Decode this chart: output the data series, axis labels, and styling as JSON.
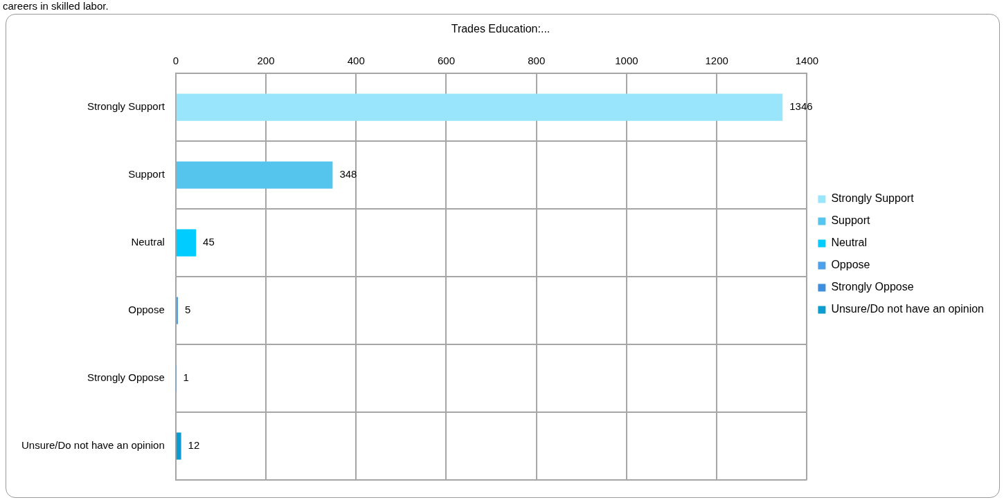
{
  "chart_data": {
    "type": "bar",
    "orientation": "horizontal",
    "stacked": true,
    "title": "Trades Education:...",
    "annotations": [
      "careers in skilled labor."
    ],
    "categories": [
      "Strongly Support",
      "Support",
      "Neutral",
      "Oppose",
      "Strongly Oppose",
      "Unsure/Do not have an opinion"
    ],
    "series": [
      {
        "name": "Strongly Support",
        "color": "#99e5fb",
        "values": [
          1346,
          null,
          null,
          null,
          null,
          null
        ]
      },
      {
        "name": "Support",
        "color": "#56c5ee",
        "values": [
          null,
          348,
          null,
          null,
          null,
          null
        ]
      },
      {
        "name": "Neutral",
        "color": "#00ccff",
        "values": [
          null,
          null,
          45,
          null,
          null,
          null
        ]
      },
      {
        "name": "Oppose",
        "color": "#4ea1e8",
        "values": [
          null,
          null,
          null,
          5,
          null,
          null
        ]
      },
      {
        "name": "Strongly Oppose",
        "color": "#3f8fde",
        "values": [
          null,
          null,
          null,
          null,
          1,
          null
        ]
      },
      {
        "name": "Unsure/Do not have an opinion",
        "color": "#0c9ccf",
        "values": [
          null,
          null,
          null,
          null,
          null,
          12
        ]
      }
    ],
    "xlim": [
      0,
      1400
    ],
    "xticks": [
      0,
      200,
      400,
      600,
      800,
      1000,
      1200,
      1400
    ],
    "grid": true,
    "legend": "right",
    "data_labels": true
  }
}
